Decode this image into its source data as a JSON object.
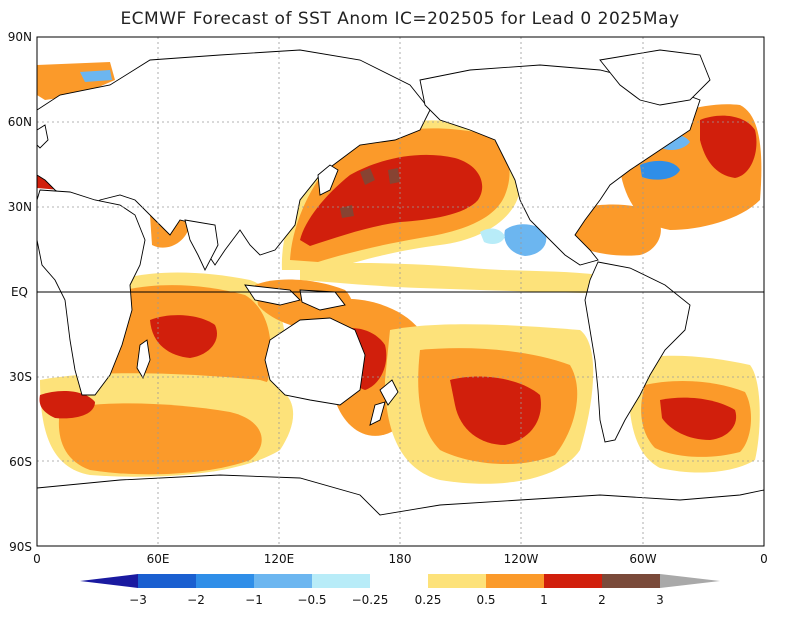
{
  "title": "ECMWF Forecast of SST Anom IC=202505 for Lead 0 2025May",
  "lat_labels": [
    "90N",
    "60N",
    "30N",
    "EQ",
    "30S",
    "60S",
    "90S"
  ],
  "lon_labels": [
    "0",
    "60E",
    "120E",
    "180",
    "120W",
    "60W",
    "0"
  ],
  "colorbar": {
    "labels": [
      "-3",
      "-2",
      "-1",
      "-0.5",
      "-0.25",
      "0.25",
      "0.5",
      "1",
      "2",
      "3"
    ],
    "colors": [
      "#1a1aa0",
      "#1a5fd0",
      "#2f8ee8",
      "#6cb6f0",
      "#b8ecf8",
      "#ffffff",
      "#fde27a",
      "#fb9a2a",
      "#f46412",
      "#d11f0c",
      "#7a4a3a",
      "#a9a9a9"
    ]
  },
  "anomaly_colors": {
    "weak_positive": "#fde27a",
    "moderate_positive": "#fb9a2a",
    "strong_positive": "#f46412",
    "very_strong_positive": "#d11f0c",
    "extreme_positive": "#7a4a3a",
    "beyond_scale": "#808080",
    "weak_negative": "#b8ecf8",
    "moderate_negative": "#6cb6f0",
    "strong_negative": "#2f8ee8",
    "land": "#ffffff",
    "coastline": "#000000"
  }
}
